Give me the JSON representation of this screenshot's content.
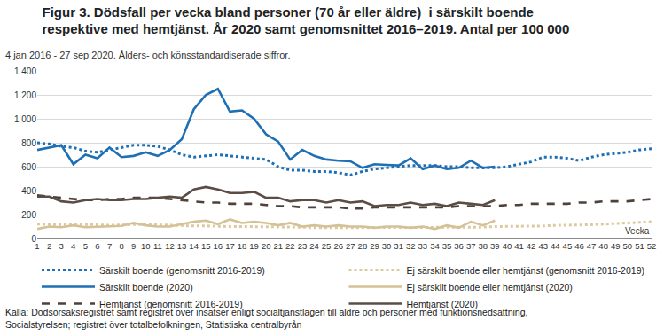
{
  "chart_data": {
    "type": "line",
    "title": "Figur 3. Dödsfall per vecka bland personer (70 år eller äldre)  i särskilt boende\nrespektive med hemtjänst. År 2020 samt genomsnittet 2016–2019. Antal per 100 000",
    "subtitle": "4 jan 2016 - 27 sep 2020. Ålders- och könsstandardiserade siffror.",
    "x_label": "Vecka",
    "source": "Källa: Dödsorsaksregistret samt registret över insatser enligt socialtjänstlagen till äldre och personer med funktionsnedsättning,\nSocialstyrelsen; registret över totalbefolkningen, Statistiska centralbyrån",
    "x": [
      1,
      2,
      3,
      4,
      5,
      6,
      7,
      8,
      9,
      10,
      11,
      12,
      13,
      14,
      15,
      16,
      17,
      18,
      19,
      20,
      21,
      22,
      23,
      24,
      25,
      26,
      27,
      28,
      29,
      30,
      31,
      32,
      33,
      34,
      35,
      36,
      37,
      38,
      39,
      40,
      41,
      42,
      43,
      44,
      45,
      46,
      47,
      48,
      49,
      50,
      51,
      52
    ],
    "xlim": [
      1,
      52
    ],
    "xticks": [
      1,
      2,
      3,
      4,
      5,
      6,
      7,
      8,
      9,
      10,
      11,
      12,
      13,
      14,
      15,
      16,
      17,
      18,
      19,
      20,
      21,
      22,
      23,
      24,
      25,
      26,
      27,
      28,
      29,
      30,
      31,
      32,
      33,
      34,
      35,
      36,
      37,
      38,
      39,
      40,
      41,
      42,
      43,
      44,
      45,
      46,
      47,
      48,
      49,
      50,
      51,
      52
    ],
    "ylim": [
      0,
      1400
    ],
    "yticks": [
      0,
      200,
      400,
      600,
      800,
      {
        "value": 1000,
        "label": "1 000"
      },
      {
        "value": 1200,
        "label": "1 200"
      },
      {
        "value": 1400,
        "label": "1 400"
      }
    ],
    "grid": true,
    "legend": "bottom",
    "series": [
      {
        "name": "Särskilt boende (genomsnitt 2016-2019)",
        "color": "#1f6fb5",
        "line_style": "dot",
        "values": [
          800,
          790,
          770,
          760,
          730,
          720,
          740,
          760,
          780,
          780,
          770,
          740,
          700,
          680,
          690,
          700,
          690,
          680,
          670,
          660,
          600,
          570,
          570,
          560,
          560,
          550,
          530,
          560,
          580,
          590,
          600,
          610,
          610,
          610,
          600,
          600,
          590,
          590,
          590,
          600,
          620,
          640,
          680,
          680,
          670,
          650,
          680,
          700,
          710,
          720,
          740,
          750
        ]
      },
      {
        "name": "Ej särskilt boende eller hemtjänst (genomsnitt 2016-2019)",
        "color": "#dcc9a0",
        "line_style": "dot",
        "values": [
          120,
          115,
          115,
          120,
          120,
          115,
          110,
          115,
          120,
          120,
          115,
          110,
          110,
          105,
          105,
          100,
          100,
          100,
          100,
          95,
          95,
          95,
          95,
          90,
          90,
          90,
          90,
          90,
          90,
          90,
          90,
          90,
          90,
          90,
          95,
          95,
          95,
          95,
          100,
          100,
          100,
          105,
          105,
          110,
          110,
          115,
          115,
          120,
          125,
          130,
          135,
          140
        ]
      },
      {
        "name": "Särskilt boende (2020)",
        "color": "#1f6fb5",
        "line_style": "solid",
        "values": [
          740,
          760,
          780,
          620,
          700,
          670,
          760,
          680,
          690,
          720,
          690,
          740,
          830,
          1080,
          1200,
          1250,
          1060,
          1070,
          1000,
          870,
          810,
          660,
          740,
          690,
          660,
          650,
          645,
          590,
          620,
          615,
          610,
          670,
          580,
          610,
          580,
          590,
          650,
          590,
          600,
          null,
          null,
          null,
          null,
          null,
          null,
          null,
          null,
          null,
          null,
          null,
          null,
          null
        ]
      },
      {
        "name": "Ej särskilt boende eller hemtjänst (2020)",
        "color": "#d4c196",
        "line_style": "solid",
        "values": [
          80,
          100,
          95,
          110,
          95,
          100,
          100,
          105,
          130,
          110,
          100,
          100,
          120,
          140,
          150,
          120,
          160,
          130,
          140,
          130,
          110,
          130,
          100,
          110,
          100,
          110,
          100,
          100,
          90,
          100,
          100,
          90,
          100,
          80,
          110,
          90,
          140,
          110,
          150,
          null,
          null,
          null,
          null,
          null,
          null,
          null,
          null,
          null,
          null,
          null,
          null,
          null
        ]
      },
      {
        "name": "Hemtjänst (genomsnitt 2016-2019)",
        "color": "#4f4039",
        "line_style": "dash",
        "values": [
          360,
          350,
          340,
          330,
          320,
          320,
          330,
          330,
          340,
          340,
          340,
          330,
          320,
          310,
          300,
          300,
          290,
          290,
          290,
          280,
          270,
          270,
          260,
          260,
          260,
          260,
          250,
          250,
          260,
          260,
          260,
          260,
          260,
          260,
          260,
          270,
          270,
          270,
          270,
          280,
          280,
          290,
          290,
          290,
          290,
          300,
          300,
          310,
          310,
          310,
          320,
          330
        ]
      },
      {
        "name": "Hemtjänst (2020)",
        "color": "#5b4c45",
        "line_style": "solid",
        "values": [
          350,
          350,
          310,
          300,
          320,
          330,
          320,
          320,
          330,
          330,
          340,
          350,
          340,
          410,
          430,
          410,
          380,
          380,
          390,
          340,
          340,
          310,
          320,
          320,
          300,
          320,
          300,
          310,
          270,
          280,
          280,
          300,
          280,
          290,
          270,
          300,
          290,
          280,
          320,
          null,
          null,
          null,
          null,
          null,
          null,
          null,
          null,
          null,
          null,
          null,
          null,
          null
        ]
      }
    ]
  }
}
